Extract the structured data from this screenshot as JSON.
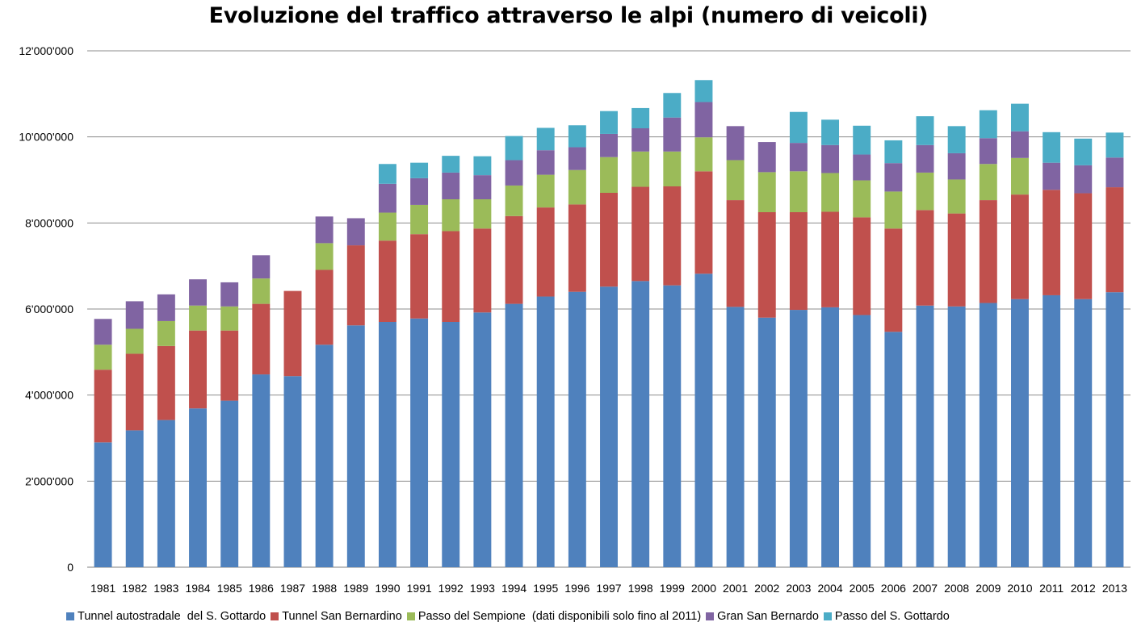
{
  "chart_data": {
    "type": "bar",
    "stacked": true,
    "title": "Evoluzione del traffico attraverso le alpi (numero di veicoli)",
    "xlabel": "",
    "ylabel": "",
    "ylim": [
      0,
      12000000
    ],
    "y_ticks": [
      0,
      2000000,
      4000000,
      6000000,
      8000000,
      10000000,
      12000000
    ],
    "y_tick_labels": [
      "0",
      "2'000'000",
      "4'000'000",
      "6'000'000",
      "8'000'000",
      "10'000'000",
      "12'000'000"
    ],
    "grid": true,
    "legend_position": "bottom",
    "categories": [
      "1981",
      "1982",
      "1983",
      "1984",
      "1985",
      "1986",
      "1987",
      "1988",
      "1989",
      "1990",
      "1991",
      "1992",
      "1993",
      "1994",
      "1995",
      "1996",
      "1997",
      "1998",
      "1999",
      "2000",
      "2001",
      "2002",
      "2003",
      "2004",
      "2005",
      "2006",
      "2007",
      "2008",
      "2009",
      "2010",
      "2011",
      "2012",
      "2013"
    ],
    "series": [
      {
        "name": "Tunnel autostradale  del S. Gottardo",
        "color": "#4F81BD",
        "values": [
          2900000,
          3180000,
          3420000,
          3690000,
          3870000,
          4480000,
          4440000,
          5170000,
          5620000,
          5700000,
          5780000,
          5700000,
          5920000,
          6120000,
          6290000,
          6400000,
          6520000,
          6650000,
          6550000,
          6820000,
          6050000,
          5800000,
          5980000,
          6040000,
          5860000,
          5470000,
          6080000,
          6060000,
          6140000,
          6230000,
          6320000,
          6230000,
          6390000
        ]
      },
      {
        "name": "Tunnel San Bernardino",
        "color": "#C0504D",
        "values": [
          1690000,
          1780000,
          1720000,
          1810000,
          1630000,
          1640000,
          1980000,
          1740000,
          1860000,
          1890000,
          1960000,
          2110000,
          1950000,
          2040000,
          2070000,
          2030000,
          2180000,
          2190000,
          2300000,
          2380000,
          2480000,
          2450000,
          2270000,
          2220000,
          2270000,
          2400000,
          2220000,
          2160000,
          2390000,
          2430000,
          2450000,
          2460000,
          2440000
        ]
      },
      {
        "name": "Passo del Sempione  (dati disponibili solo fino al 2011)",
        "color": "#9BBB59",
        "values": [
          580000,
          580000,
          580000,
          580000,
          560000,
          590000,
          0,
          620000,
          0,
          650000,
          680000,
          740000,
          680000,
          710000,
          760000,
          800000,
          830000,
          820000,
          810000,
          790000,
          930000,
          930000,
          950000,
          900000,
          860000,
          860000,
          870000,
          790000,
          840000,
          850000,
          0,
          0,
          0
        ]
      },
      {
        "name": "Gran San Bernardo",
        "color": "#8064A2",
        "values": [
          600000,
          640000,
          620000,
          610000,
          560000,
          540000,
          0,
          620000,
          630000,
          670000,
          620000,
          620000,
          560000,
          590000,
          570000,
          530000,
          540000,
          540000,
          790000,
          820000,
          790000,
          700000,
          660000,
          650000,
          600000,
          660000,
          640000,
          610000,
          600000,
          620000,
          630000,
          650000,
          690000
        ]
      },
      {
        "name": "Passo del S. Gottardo",
        "color": "#4BACC6",
        "values": [
          0,
          0,
          0,
          0,
          0,
          0,
          0,
          0,
          0,
          460000,
          360000,
          390000,
          440000,
          560000,
          520000,
          510000,
          530000,
          470000,
          570000,
          510000,
          0,
          0,
          720000,
          590000,
          670000,
          530000,
          670000,
          630000,
          650000,
          640000,
          710000,
          620000,
          580000
        ]
      }
    ]
  }
}
